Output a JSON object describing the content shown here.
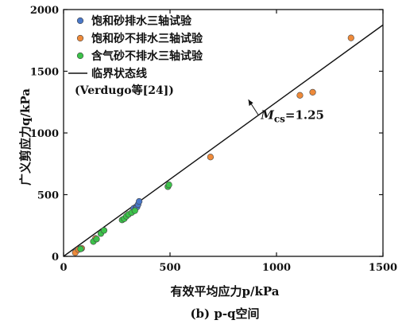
{
  "chart_data": {
    "type": "scatter",
    "xlabel": "有效平均应力p/kPa",
    "ylabel": "广义剪应力q/kPa",
    "xlim": [
      0,
      1500
    ],
    "ylim": [
      0,
      2000
    ],
    "x_ticks": [
      "0",
      "500",
      "1000",
      "1500"
    ],
    "y_ticks": [
      "0",
      "500",
      "1000",
      "1500",
      "2000"
    ],
    "caption": "(b) p-q空间",
    "legend_position": "top-left",
    "series": [
      {
        "name": "饱和砂排水三轴试验",
        "color": "#4a78c8",
        "points": [
          [
            330,
            390
          ],
          [
            340,
            395
          ],
          [
            345,
            400
          ],
          [
            350,
            420
          ],
          [
            355,
            445
          ]
        ]
      },
      {
        "name": "饱和砂不排水三轴试验",
        "color": "#ee8a3a",
        "points": [
          [
            55,
            30
          ],
          [
            70,
            55
          ],
          [
            85,
            65
          ],
          [
            150,
            145
          ],
          [
            690,
            805
          ],
          [
            1110,
            1305
          ],
          [
            1170,
            1330
          ],
          [
            1350,
            1770
          ]
        ]
      },
      {
        "name": "含气砂不排水三轴试验",
        "color": "#3cc24a",
        "points": [
          [
            80,
            60
          ],
          [
            140,
            120
          ],
          [
            155,
            140
          ],
          [
            175,
            185
          ],
          [
            190,
            210
          ],
          [
            275,
            295
          ],
          [
            285,
            305
          ],
          [
            295,
            325
          ],
          [
            305,
            340
          ],
          [
            320,
            355
          ],
          [
            335,
            370
          ],
          [
            490,
            565
          ],
          [
            495,
            580
          ]
        ]
      }
    ],
    "reference_line": {
      "name": "临界状态线",
      "source": "(Verdugo等[24])",
      "slope_label": "M",
      "slope_subscript": "cs",
      "slope_value": "=1.25",
      "x": [
        0,
        1500
      ],
      "y": [
        0,
        1875
      ]
    }
  }
}
